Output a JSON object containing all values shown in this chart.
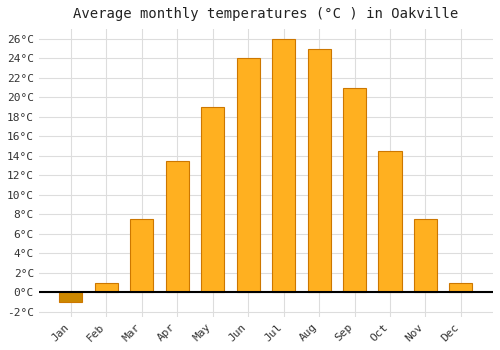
{
  "title": "Average monthly temperatures (°C ) in Oakville",
  "months": [
    "Jan",
    "Feb",
    "Mar",
    "Apr",
    "May",
    "Jun",
    "Jul",
    "Aug",
    "Sep",
    "Oct",
    "Nov",
    "Dec"
  ],
  "values": [
    -1.0,
    1.0,
    7.5,
    13.5,
    19.0,
    24.0,
    26.0,
    25.0,
    21.0,
    14.5,
    7.5,
    1.0
  ],
  "bar_color_pos": "#FFB020",
  "bar_color_neg": "#CC8800",
  "bar_edge_color": "#CC7700",
  "ylim": [
    -2.5,
    27
  ],
  "yticks": [
    -2,
    0,
    2,
    4,
    6,
    8,
    10,
    12,
    14,
    16,
    18,
    20,
    22,
    24,
    26
  ],
  "background_color": "#ffffff",
  "plot_bg_color": "#ffffff",
  "title_fontsize": 10,
  "tick_fontsize": 8,
  "grid_color": "#dddddd"
}
